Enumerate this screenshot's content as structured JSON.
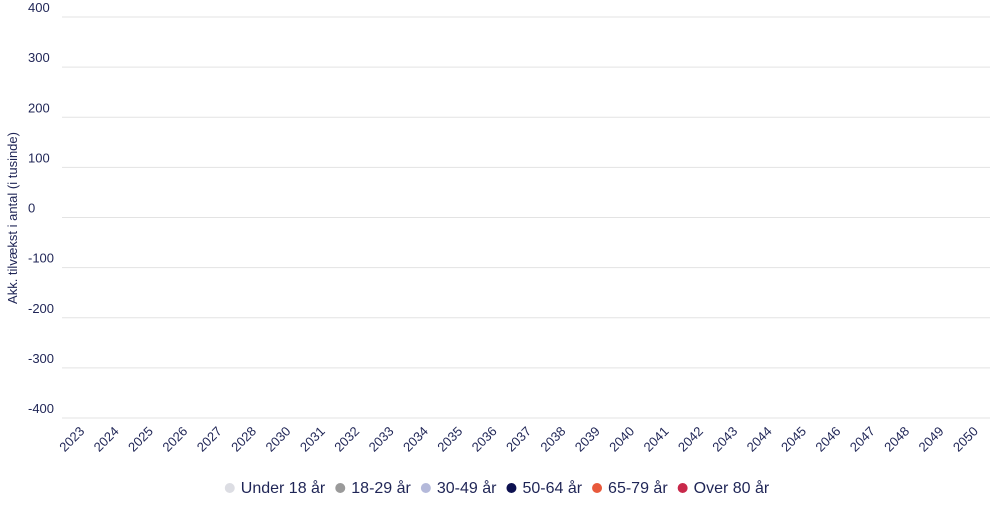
{
  "chart_data": {
    "type": "bar",
    "stacked": true,
    "ylabel": "Akk. tilvækst i antal (i tusinde)",
    "categories": [
      "2023",
      "2024",
      "2025",
      "2026",
      "2027",
      "2028",
      "2030",
      "2031",
      "2032",
      "2033",
      "2034",
      "2035",
      "2036",
      "2037",
      "2038",
      "2039",
      "2040",
      "2041",
      "2042",
      "2043",
      "2044",
      "2045",
      "2046",
      "2047",
      "2048",
      "2049",
      "2050"
    ],
    "series": [
      {
        "name": "Under 18 år",
        "color": "#dcdde3"
      },
      {
        "name": "18-29 år",
        "color": "#9a9a9a"
      },
      {
        "name": "30-49 år",
        "color": "#b4b9da"
      },
      {
        "name": "50-64 år",
        "color": "#0d1150"
      },
      {
        "name": "65-79 år",
        "color": "#e8593b"
      },
      {
        "name": "Over 80 år",
        "color": "#c8284a"
      }
    ],
    "ylim": [
      -400,
      400
    ],
    "yticks": [
      -400,
      -300,
      -200,
      -100,
      0,
      100,
      200,
      300,
      400
    ],
    "grid": true,
    "legend": "bottom"
  }
}
